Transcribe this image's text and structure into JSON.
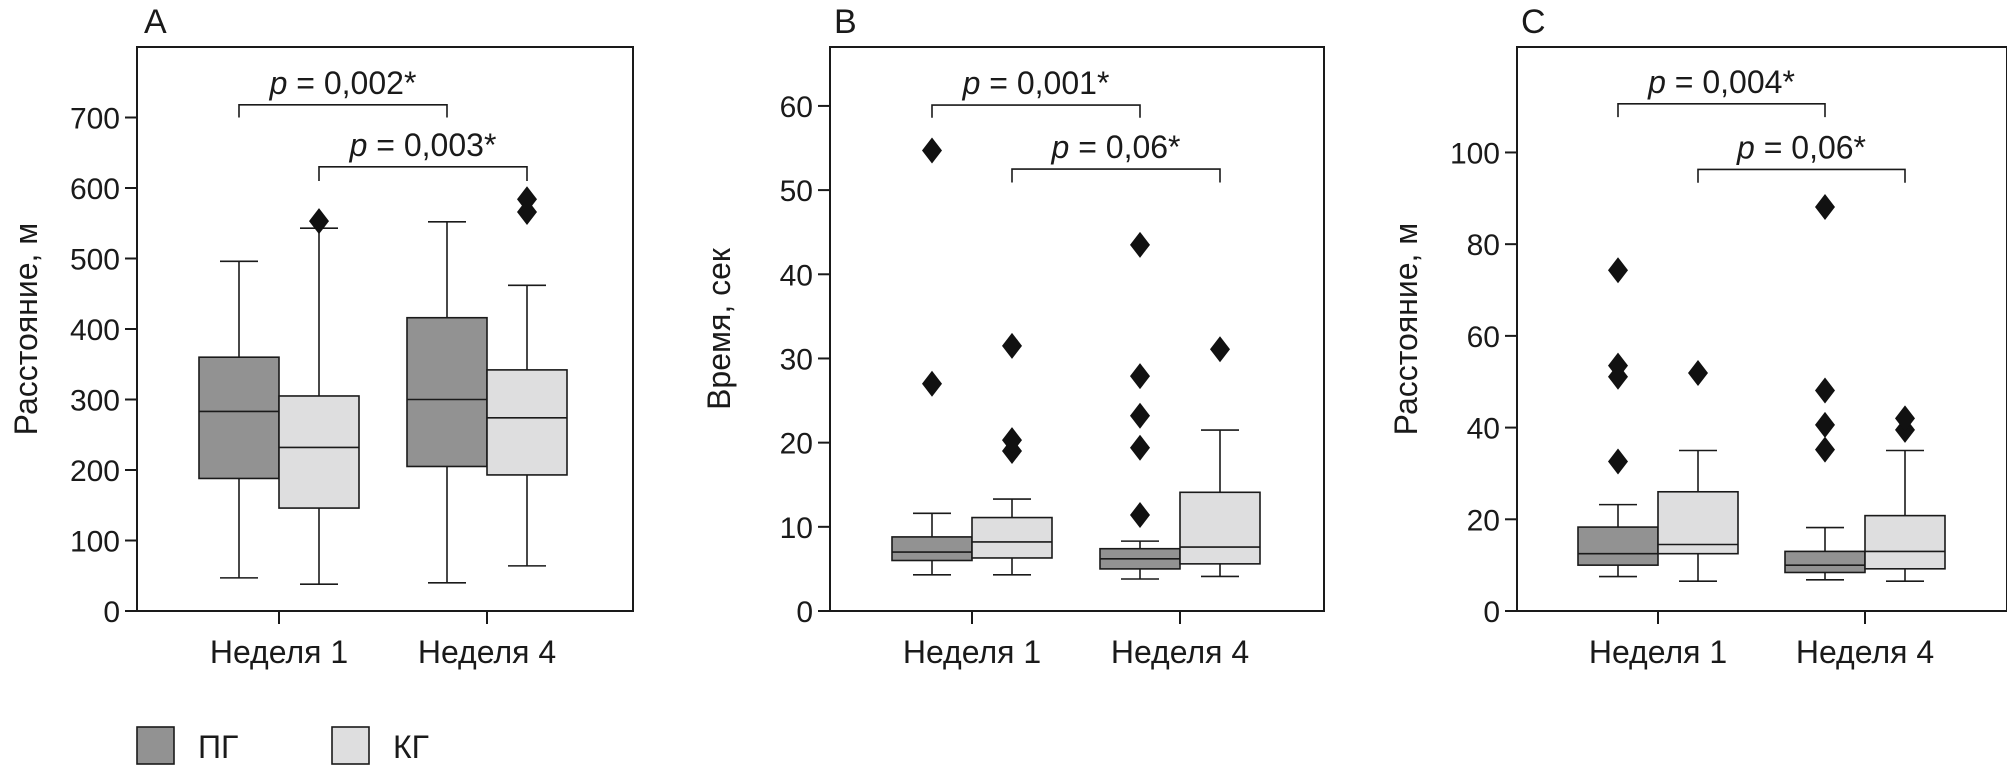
{
  "colors": {
    "pg": "#929292",
    "kg": "#dededf",
    "stroke": "#1a1a1a"
  },
  "legend": [
    {
      "key": "pg",
      "label": "ПГ"
    },
    {
      "key": "kg",
      "label": "КГ"
    }
  ],
  "chart_data": [
    {
      "type": "boxplot",
      "panel": "A",
      "ylabel": "Расстояние, м",
      "ylim": [
        0,
        800
      ],
      "yticks": [
        0,
        100,
        200,
        300,
        400,
        500,
        600,
        700
      ],
      "categories": [
        "Неделя 1",
        "Неделя 4"
      ],
      "series": [
        {
          "name": "ПГ",
          "color_key": "pg",
          "boxes": [
            {
              "whisker_low": 47,
              "q1": 188,
              "median": 283,
              "q3": 360,
              "whisker_high": 496,
              "outliers": []
            },
            {
              "whisker_low": 40,
              "q1": 205,
              "median": 300,
              "q3": 416,
              "whisker_high": 552,
              "outliers": []
            }
          ]
        },
        {
          "name": "КГ",
          "color_key": "kg",
          "boxes": [
            {
              "whisker_low": 38,
              "q1": 146,
              "median": 232,
              "q3": 305,
              "whisker_high": 543,
              "outliers": [
                553
              ]
            },
            {
              "whisker_low": 64,
              "q1": 193,
              "median": 274,
              "q3": 342,
              "whisker_high": 462,
              "outliers": [
                566,
                584
              ]
            }
          ]
        }
      ],
      "comparisons": [
        {
          "label": "p = 0,002*",
          "from": [
            0,
            0
          ],
          "to": [
            1,
            0
          ],
          "y": 718,
          "tick_low": 700
        },
        {
          "label": "p = 0,003*",
          "from": [
            0,
            1
          ],
          "to": [
            1,
            1
          ],
          "y": 630,
          "tick_low": 610
        }
      ]
    },
    {
      "type": "boxplot",
      "panel": "B",
      "ylabel": "Время, сек",
      "ylim": [
        0,
        67
      ],
      "yticks": [
        0,
        10,
        20,
        30,
        40,
        50,
        60
      ],
      "categories": [
        "Неделя 1",
        "Неделя 4"
      ],
      "series": [
        {
          "name": "ПГ",
          "color_key": "pg",
          "boxes": [
            {
              "whisker_low": 4.3,
              "q1": 6.0,
              "median": 7.0,
              "q3": 8.8,
              "whisker_high": 11.6,
              "outliers": [
                27.0,
                54.7
              ]
            },
            {
              "whisker_low": 3.8,
              "q1": 5.0,
              "median": 6.2,
              "q3": 7.4,
              "whisker_high": 8.3,
              "outliers": [
                11.4,
                19.4,
                23.2,
                27.9,
                43.5
              ]
            }
          ]
        },
        {
          "name": "КГ",
          "color_key": "kg",
          "boxes": [
            {
              "whisker_low": 4.3,
              "q1": 6.3,
              "median": 8.2,
              "q3": 11.1,
              "whisker_high": 13.3,
              "outliers": [
                19.0,
                20.3,
                31.5
              ]
            },
            {
              "whisker_low": 4.1,
              "q1": 5.6,
              "median": 7.6,
              "q3": 14.1,
              "whisker_high": 21.5,
              "outliers": [
                31.1
              ]
            }
          ]
        }
      ],
      "comparisons": [
        {
          "label": "p = 0,001*",
          "from": [
            0,
            0
          ],
          "to": [
            1,
            0
          ],
          "y": 60.1,
          "tick_low": 58.6
        },
        {
          "label": "p = 0,06*",
          "from": [
            0,
            1
          ],
          "to": [
            1,
            1
          ],
          "y": 52.5,
          "tick_low": 50.9
        }
      ]
    },
    {
      "type": "boxplot",
      "panel": "C",
      "ylabel": "Расстояние, м",
      "ylim": [
        0,
        123
      ],
      "yticks": [
        0,
        20,
        40,
        60,
        80,
        100
      ],
      "categories": [
        "Неделя 1",
        "Неделя 4"
      ],
      "series": [
        {
          "name": "ПГ",
          "color_key": "pg",
          "boxes": [
            {
              "whisker_low": 7.5,
              "q1": 10,
              "median": 12.5,
              "q3": 18.3,
              "whisker_high": 23.2,
              "outliers": [
                32.6,
                51.1,
                53.5,
                74.3
              ]
            },
            {
              "whisker_low": 6.8,
              "q1": 8.4,
              "median": 10,
              "q3": 13,
              "whisker_high": 18.2,
              "outliers": [
                35.2,
                40.6,
                48.1,
                88.1
              ]
            }
          ]
        },
        {
          "name": "КГ",
          "color_key": "kg",
          "boxes": [
            {
              "whisker_low": 6.5,
              "q1": 12.5,
              "median": 14.5,
              "q3": 26,
              "whisker_high": 35,
              "outliers": [
                51.9
              ]
            },
            {
              "whisker_low": 6.5,
              "q1": 9.2,
              "median": 13,
              "q3": 20.8,
              "whisker_high": 35,
              "outliers": [
                39.5,
                42
              ]
            }
          ]
        }
      ],
      "comparisons": [
        {
          "label": "p = 0,004*",
          "from": [
            0,
            0
          ],
          "to": [
            1,
            0
          ],
          "y": 110.6,
          "tick_low": 107.7
        },
        {
          "label": "p = 0,06*",
          "from": [
            0,
            1
          ],
          "to": [
            1,
            1
          ],
          "y": 96.3,
          "tick_low": 93.4
        }
      ]
    }
  ]
}
